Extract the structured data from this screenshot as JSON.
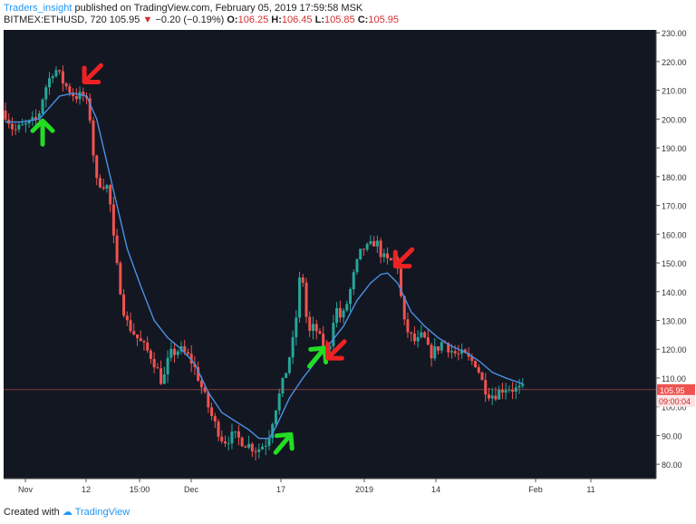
{
  "header": {
    "author": "Traders_insight",
    "published_text": "published on TradingView.com, February 05, 2019 17:59:58 MSK",
    "symbol": "BITMEX:ETHUSD, 720",
    "last": "105.95",
    "change": "−0.20 (−0.19%)",
    "o_label": "O:",
    "o_val": "106.25",
    "h_label": "H:",
    "h_val": "106.45",
    "l_label": "L:",
    "l_val": "105.85",
    "c_label": "C:",
    "c_val": "105.95"
  },
  "footer": {
    "created_with": "Created with",
    "brand": "TradingView"
  },
  "colors": {
    "background": "#131722",
    "up": "#26a69a",
    "down": "#ef5350",
    "ma": "#4a90e2",
    "arrow_up": "#22dd22",
    "arrow_down": "#ee2222"
  },
  "chart_data": {
    "type": "candlestick",
    "ylim": [
      75,
      231
    ],
    "y_ticks": [
      "80.00",
      "90.00",
      "100.00",
      "110.00",
      "120.00",
      "130.00",
      "140.00",
      "150.00",
      "160.00",
      "170.00",
      "180.00",
      "190.00",
      "200.00",
      "210.00",
      "220.00",
      "230.00"
    ],
    "x_ticks": [
      "Nov",
      "12",
      "15:00",
      "Dec",
      "17",
      "2019",
      "14",
      "Feb",
      "11"
    ],
    "price_label": "105.95",
    "time_label": "09:00:04",
    "anchors": [
      {
        "t": 0,
        "p": 203
      },
      {
        "t": 3,
        "p": 196
      },
      {
        "t": 7,
        "p": 198
      },
      {
        "t": 10,
        "p": 200
      },
      {
        "t": 12,
        "p": 210
      },
      {
        "t": 15,
        "p": 218
      },
      {
        "t": 18,
        "p": 212
      },
      {
        "t": 21,
        "p": 208
      },
      {
        "t": 24,
        "p": 208
      },
      {
        "t": 26,
        "p": 198
      },
      {
        "t": 27,
        "p": 178
      },
      {
        "t": 29,
        "p": 178
      },
      {
        "t": 31,
        "p": 176
      },
      {
        "t": 33,
        "p": 152
      },
      {
        "t": 36,
        "p": 130
      },
      {
        "t": 40,
        "p": 123
      },
      {
        "t": 44,
        "p": 117
      },
      {
        "t": 47,
        "p": 108
      },
      {
        "t": 49,
        "p": 118
      },
      {
        "t": 52,
        "p": 120
      },
      {
        "t": 55,
        "p": 117
      },
      {
        "t": 57,
        "p": 112
      },
      {
        "t": 59,
        "p": 105
      },
      {
        "t": 62,
        "p": 95
      },
      {
        "t": 65,
        "p": 88
      },
      {
        "t": 68,
        "p": 90
      },
      {
        "t": 72,
        "p": 87
      },
      {
        "t": 75,
        "p": 85
      },
      {
        "t": 78,
        "p": 88
      },
      {
        "t": 80,
        "p": 98
      },
      {
        "t": 83,
        "p": 110
      },
      {
        "t": 86,
        "p": 125
      },
      {
        "t": 88,
        "p": 150
      },
      {
        "t": 90,
        "p": 125
      },
      {
        "t": 92,
        "p": 128
      },
      {
        "t": 94,
        "p": 122
      },
      {
        "t": 96,
        "p": 118
      },
      {
        "t": 98,
        "p": 135
      },
      {
        "t": 100,
        "p": 130
      },
      {
        "t": 102,
        "p": 138
      },
      {
        "t": 104,
        "p": 148
      },
      {
        "t": 106,
        "p": 155
      },
      {
        "t": 108,
        "p": 155
      },
      {
        "t": 110,
        "p": 158
      },
      {
        "t": 112,
        "p": 152
      },
      {
        "t": 114,
        "p": 150
      },
      {
        "t": 116,
        "p": 152
      },
      {
        "t": 117,
        "p": 146
      },
      {
        "t": 118,
        "p": 130
      },
      {
        "t": 120,
        "p": 125
      },
      {
        "t": 122,
        "p": 122
      },
      {
        "t": 124,
        "p": 125
      },
      {
        "t": 126,
        "p": 118
      },
      {
        "t": 128,
        "p": 120
      },
      {
        "t": 130,
        "p": 123
      },
      {
        "t": 132,
        "p": 120
      },
      {
        "t": 134,
        "p": 118
      },
      {
        "t": 136,
        "p": 118
      },
      {
        "t": 138,
        "p": 116
      },
      {
        "t": 140,
        "p": 115
      },
      {
        "t": 141,
        "p": 110
      },
      {
        "t": 143,
        "p": 105
      },
      {
        "t": 145,
        "p": 104
      },
      {
        "t": 147,
        "p": 106
      },
      {
        "t": 149,
        "p": 107
      },
      {
        "t": 151,
        "p": 106
      },
      {
        "t": 153,
        "p": 106
      }
    ],
    "ma": [
      {
        "t": 0,
        "p": 199
      },
      {
        "t": 5,
        "p": 199
      },
      {
        "t": 10,
        "p": 200
      },
      {
        "t": 13,
        "p": 204
      },
      {
        "t": 16,
        "p": 208
      },
      {
        "t": 20,
        "p": 209
      },
      {
        "t": 24,
        "p": 208
      },
      {
        "t": 27,
        "p": 200
      },
      {
        "t": 30,
        "p": 185
      },
      {
        "t": 33,
        "p": 170
      },
      {
        "t": 36,
        "p": 155
      },
      {
        "t": 40,
        "p": 142
      },
      {
        "t": 44,
        "p": 130
      },
      {
        "t": 48,
        "p": 124
      },
      {
        "t": 52,
        "p": 120
      },
      {
        "t": 56,
        "p": 115
      },
      {
        "t": 60,
        "p": 105
      },
      {
        "t": 64,
        "p": 98
      },
      {
        "t": 68,
        "p": 95
      },
      {
        "t": 72,
        "p": 92
      },
      {
        "t": 75,
        "p": 89
      },
      {
        "t": 78,
        "p": 89
      },
      {
        "t": 80,
        "p": 93
      },
      {
        "t": 84,
        "p": 103
      },
      {
        "t": 88,
        "p": 110
      },
      {
        "t": 92,
        "p": 116
      },
      {
        "t": 96,
        "p": 122
      },
      {
        "t": 100,
        "p": 128
      },
      {
        "t": 104,
        "p": 137
      },
      {
        "t": 108,
        "p": 143
      },
      {
        "t": 111,
        "p": 146
      },
      {
        "t": 113,
        "p": 146.5
      },
      {
        "t": 116,
        "p": 143
      },
      {
        "t": 120,
        "p": 133
      },
      {
        "t": 124,
        "p": 128
      },
      {
        "t": 128,
        "p": 124
      },
      {
        "t": 132,
        "p": 121
      },
      {
        "t": 136,
        "p": 119
      },
      {
        "t": 140,
        "p": 116
      },
      {
        "t": 144,
        "p": 112
      },
      {
        "t": 148,
        "p": 110
      },
      {
        "t": 153,
        "p": 108
      }
    ],
    "arrows": [
      {
        "dir": "up",
        "t": 11,
        "p": 195,
        "color": "green"
      },
      {
        "dir": "down",
        "t": 26,
        "p": 216,
        "color": "red"
      },
      {
        "dir": "up",
        "t": 82,
        "p": 87,
        "color": "green"
      },
      {
        "dir": "up",
        "t": 92,
        "p": 117,
        "color": "green"
      },
      {
        "dir": "down",
        "t": 98,
        "p": 120,
        "color": "red"
      },
      {
        "dir": "down",
        "t": 118,
        "p": 152,
        "color": "red"
      }
    ]
  }
}
